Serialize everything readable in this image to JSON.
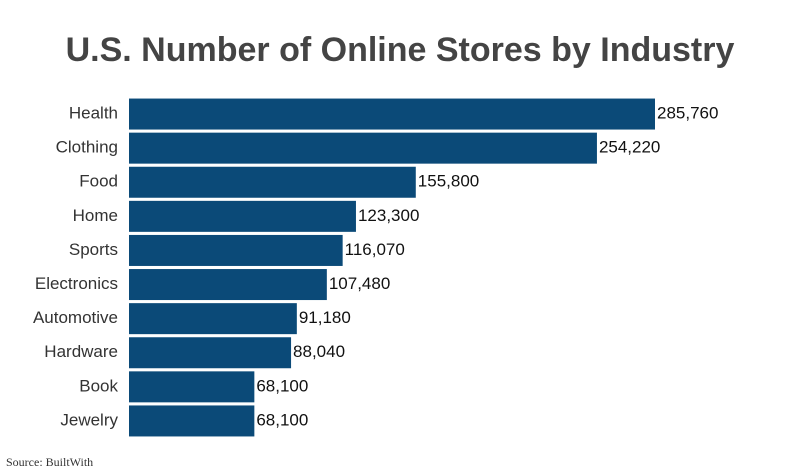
{
  "chart_data": {
    "type": "hbar",
    "title": "U.S. Number of Online Stores by Industry",
    "categories": [
      "Health",
      "Clothing",
      "Food",
      "Home",
      "Sports",
      "Electronics",
      "Automotive",
      "Hardware",
      "Book",
      "Jewelry"
    ],
    "values": [
      285760,
      254220,
      155800,
      123300,
      116070,
      107480,
      91180,
      88040,
      68100,
      68100
    ],
    "value_labels": [
      "285,760",
      "254,220",
      "155,800",
      "123,300",
      "116,070",
      "107,480",
      "91,180",
      "88,040",
      "68,100",
      "68,100"
    ],
    "color": "#0b4a78",
    "source": "Source: BuiltWith"
  }
}
